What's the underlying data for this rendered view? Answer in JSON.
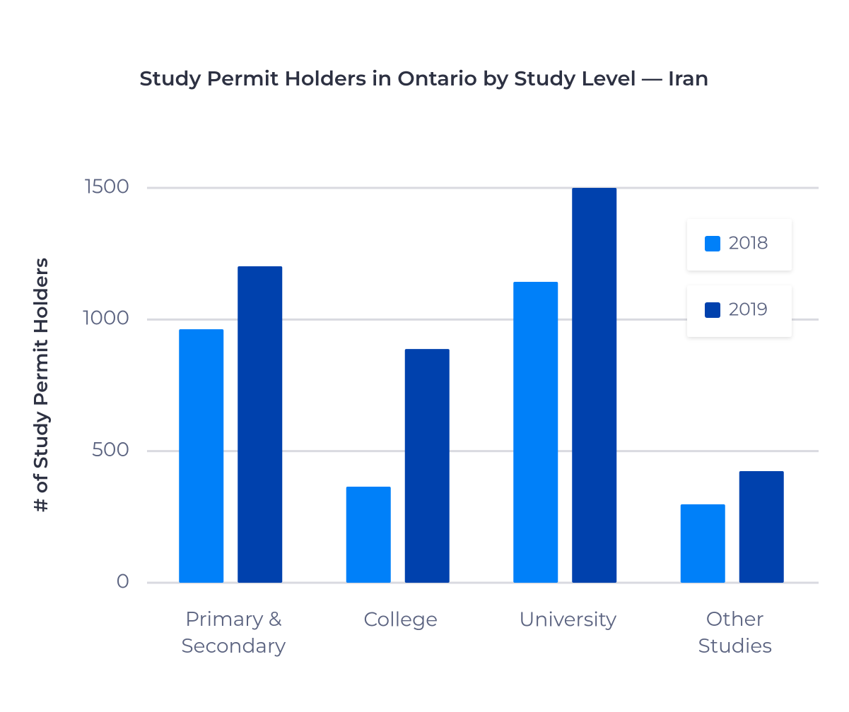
{
  "chart_data": {
    "type": "bar",
    "title": "Study Permit Holders in Ontario by Study Level — Iran",
    "y_label": "# of Study Permit Holders",
    "categories": [
      "Primary & Secondary",
      "College",
      "University",
      "Other Studies"
    ],
    "series": [
      {
        "name": "2018",
        "color": "#0080f9",
        "values": [
          963,
          365,
          1143,
          298
        ]
      },
      {
        "name": "2019",
        "color": "#0041ad",
        "values": [
          1202,
          888,
          1500,
          424
        ]
      }
    ],
    "ylim": [
      0,
      1500
    ],
    "yticks": [
      0,
      500,
      1000,
      1500
    ],
    "grid": true,
    "legend": "upper right"
  }
}
